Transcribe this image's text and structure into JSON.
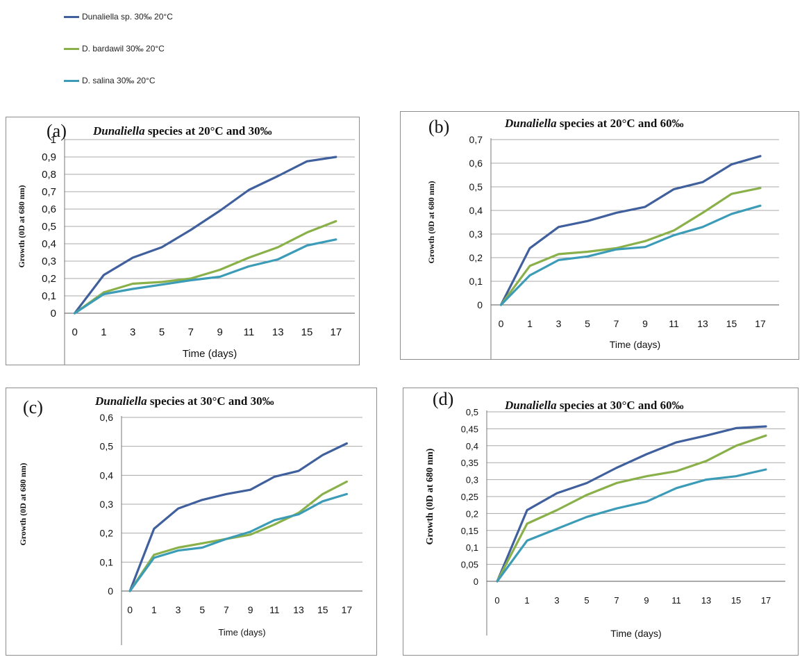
{
  "legend": {
    "items": [
      {
        "label": "Dunaliella sp. 30‰ 20°C",
        "color": "#3f5f9d"
      },
      {
        "label": "D. bardawil 30‰ 20°C",
        "color": "#8ab04a"
      },
      {
        "label": "D. salina 30‰ 20°C",
        "color": "#3c9cb8"
      }
    ]
  },
  "chart_data": [
    {
      "type": "line",
      "panel_letter": "(a)",
      "title_italic": "Dunaliella",
      "title_rest": " species at 20°C and 30‰",
      "xlabel": "Time (days)",
      "ylabel": "Growth (0D at 680 nm)",
      "x": [
        "0",
        "1",
        "3",
        "5",
        "7",
        "9",
        "11",
        "13",
        "15",
        "17"
      ],
      "ylim": [
        0,
        1
      ],
      "yticks": [
        "0",
        "0,1",
        "0,2",
        "0,3",
        "0,4",
        "0,5",
        "0,6",
        "0,7",
        "0,8",
        "0,9",
        "1"
      ],
      "series": [
        {
          "values": [
            0.0,
            0.22,
            0.32,
            0.38,
            0.48,
            0.59,
            0.71,
            0.79,
            0.875,
            0.9
          ],
          "color": "#3f5f9d"
        },
        {
          "values": [
            0.0,
            0.12,
            0.17,
            0.18,
            0.2,
            0.25,
            0.32,
            0.38,
            0.465,
            0.53
          ],
          "color": "#8ab04a"
        },
        {
          "values": [
            0.0,
            0.11,
            0.14,
            0.165,
            0.19,
            0.21,
            0.27,
            0.31,
            0.39,
            0.425
          ],
          "color": "#3c9cb8"
        }
      ]
    },
    {
      "type": "line",
      "panel_letter": "(b)",
      "title_italic": "Dunaliella",
      "title_rest": " species at 20°C and 60‰",
      "xlabel": "Time (days)",
      "ylabel": "Growth (0D at 680 nm)",
      "x": [
        "0",
        "1",
        "3",
        "5",
        "7",
        "9",
        "11",
        "13",
        "15",
        "17"
      ],
      "ylim": [
        0,
        0.7
      ],
      "yticks": [
        "0",
        "0,1",
        "0,2",
        "0,3",
        "0,4",
        "0,5",
        "0,6",
        "0,7"
      ],
      "series": [
        {
          "values": [
            0.0,
            0.24,
            0.33,
            0.355,
            0.39,
            0.415,
            0.49,
            0.52,
            0.595,
            0.63
          ],
          "color": "#3f5f9d"
        },
        {
          "values": [
            0.0,
            0.165,
            0.215,
            0.225,
            0.24,
            0.27,
            0.315,
            0.39,
            0.47,
            0.495
          ],
          "color": "#8ab04a"
        },
        {
          "values": [
            0.0,
            0.125,
            0.19,
            0.205,
            0.235,
            0.245,
            0.295,
            0.33,
            0.385,
            0.42
          ],
          "color": "#3c9cb8"
        }
      ]
    },
    {
      "type": "line",
      "panel_letter": "(c)",
      "title_italic": "Dunaliella",
      "title_rest": " species at 30°C and 30‰",
      "xlabel": "Time (days)",
      "ylabel": "Growth (0D at 680 nm)",
      "x": [
        "0",
        "1",
        "3",
        "5",
        "7",
        "9",
        "11",
        "13",
        "15",
        "17"
      ],
      "ylim": [
        0,
        0.6
      ],
      "yticks": [
        "0",
        "0,1",
        "0,2",
        "0,3",
        "0,4",
        "0,5",
        "0,6"
      ],
      "series": [
        {
          "values": [
            0.0,
            0.215,
            0.285,
            0.315,
            0.335,
            0.35,
            0.395,
            0.415,
            0.47,
            0.51
          ],
          "color": "#3f5f9d"
        },
        {
          "values": [
            0.0,
            0.125,
            0.15,
            0.165,
            0.18,
            0.195,
            0.23,
            0.27,
            0.335,
            0.378
          ],
          "color": "#8ab04a"
        },
        {
          "values": [
            0.0,
            0.115,
            0.14,
            0.15,
            0.18,
            0.205,
            0.245,
            0.265,
            0.31,
            0.335
          ],
          "color": "#3c9cb8"
        }
      ]
    },
    {
      "type": "line",
      "panel_letter": "(d)",
      "title_italic": "Dunaliella",
      "title_rest": " species at 30°C and 60‰",
      "xlabel": "Time (days)",
      "ylabel": "Growth (0D at 680 nm)",
      "x": [
        "0",
        "1",
        "3",
        "5",
        "7",
        "9",
        "11",
        "13",
        "15",
        "17"
      ],
      "ylim": [
        0,
        0.5
      ],
      "yticks": [
        "0",
        "0,05",
        "0,1",
        "0,15",
        "0,2",
        "0,25",
        "0,3",
        "0,35",
        "0,4",
        "0,45",
        "0,5"
      ],
      "series": [
        {
          "values": [
            0.0,
            0.21,
            0.26,
            0.29,
            0.335,
            0.375,
            0.41,
            0.43,
            0.452,
            0.457
          ],
          "color": "#3f5f9d"
        },
        {
          "values": [
            0.0,
            0.17,
            0.21,
            0.255,
            0.29,
            0.31,
            0.325,
            0.355,
            0.4,
            0.43
          ],
          "color": "#8ab04a"
        },
        {
          "values": [
            0.0,
            0.12,
            0.155,
            0.19,
            0.215,
            0.235,
            0.275,
            0.3,
            0.31,
            0.33
          ],
          "color": "#3c9cb8"
        }
      ]
    }
  ]
}
